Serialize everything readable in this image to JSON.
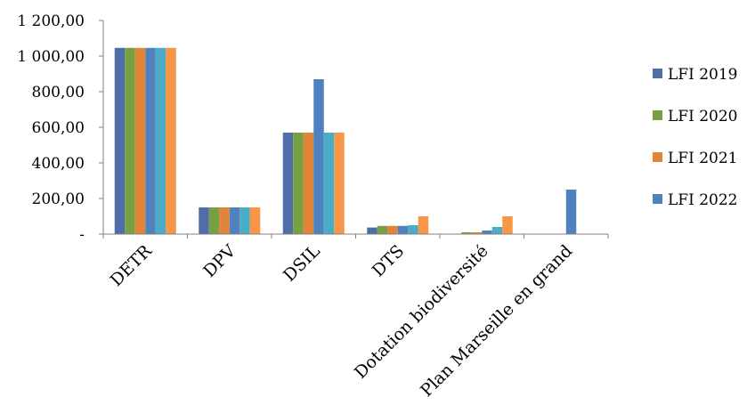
{
  "chart_data": {
    "type": "bar",
    "title": "",
    "xlabel": "",
    "ylabel": "",
    "ylim": [
      0,
      1200
    ],
    "yticks": [
      {
        "value": 0,
        "label": "-"
      },
      {
        "value": 200,
        "label": "200,00"
      },
      {
        "value": 400,
        "label": "400,00"
      },
      {
        "value": 600,
        "label": "600,00"
      },
      {
        "value": 800,
        "label": "800,00"
      },
      {
        "value": 1000,
        "label": "1 000,00"
      },
      {
        "value": 1200,
        "label": "1 200,00"
      }
    ],
    "grid": false,
    "legend_position": "right",
    "categories": [
      "DETR",
      "DPV",
      "DSIL",
      "DTS",
      "Dotation biodiversité",
      "Plan Marseille en grand"
    ],
    "series": [
      {
        "name": "LFI 2019",
        "color": "#4F6EA8",
        "values": [
          1046,
          150,
          570,
          37,
          0,
          null
        ]
      },
      {
        "name": "LFI 2020",
        "color": "#77A043",
        "values": [
          1046,
          150,
          570,
          46,
          10,
          null
        ]
      },
      {
        "name": "LFI 2021",
        "color": "#E08437",
        "values": [
          1046,
          150,
          570,
          46,
          10,
          null
        ]
      },
      {
        "name": "LFI 2022",
        "color": "#4F81BD",
        "values": [
          1046,
          150,
          870,
          46,
          20,
          250
        ]
      },
      {
        "name": "",
        "color": "#4BACC6",
        "values": [
          1046,
          150,
          570,
          50,
          40,
          null
        ]
      },
      {
        "name": "",
        "color": "#F79646",
        "values": [
          1046,
          150,
          570,
          100,
          100,
          null
        ]
      }
    ]
  }
}
